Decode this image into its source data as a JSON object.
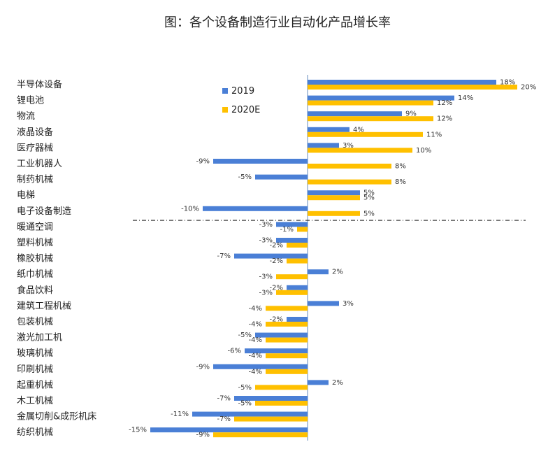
{
  "chart_data": {
    "type": "bar",
    "orientation": "horizontal",
    "title": "图：各个设备制造行业自动化产品增长率",
    "categories": [
      "半导体设备",
      "锂电池",
      "物流",
      "液晶设备",
      "医疗器械",
      "工业机器人",
      "制药机械",
      "电梯",
      "电子设备制造",
      "暖通空调",
      "塑料机械",
      "橡胶机械",
      "纸巾机械",
      "食品饮料",
      "建筑工程机械",
      "包装机械",
      "激光加工机",
      "玻璃机械",
      "印刷机械",
      "起重机械",
      "木工机械",
      "金属切削&成形机床",
      "纺织机械"
    ],
    "series": [
      {
        "name": "2019",
        "color": "#4A7FD6",
        "values": [
          18,
          14,
          9,
          4,
          3,
          -9,
          -5,
          5,
          -10,
          -3,
          -3,
          -7,
          2,
          -2,
          3,
          -2,
          -5,
          -6,
          -9,
          2,
          -7,
          -11,
          -15
        ]
      },
      {
        "name": "2020E",
        "color": "#FFC000",
        "values": [
          20,
          12,
          12,
          11,
          10,
          8,
          8,
          5,
          5,
          -1,
          -2,
          -2,
          -3,
          -3,
          -4,
          -4,
          -4,
          -4,
          -4,
          -5,
          -5,
          -7,
          -9
        ]
      }
    ],
    "unit": "%",
    "legend_position": "top-left",
    "reference_line": "dashed horizontal separator between 电子设备制造 and 暖通空调",
    "grid": false
  }
}
